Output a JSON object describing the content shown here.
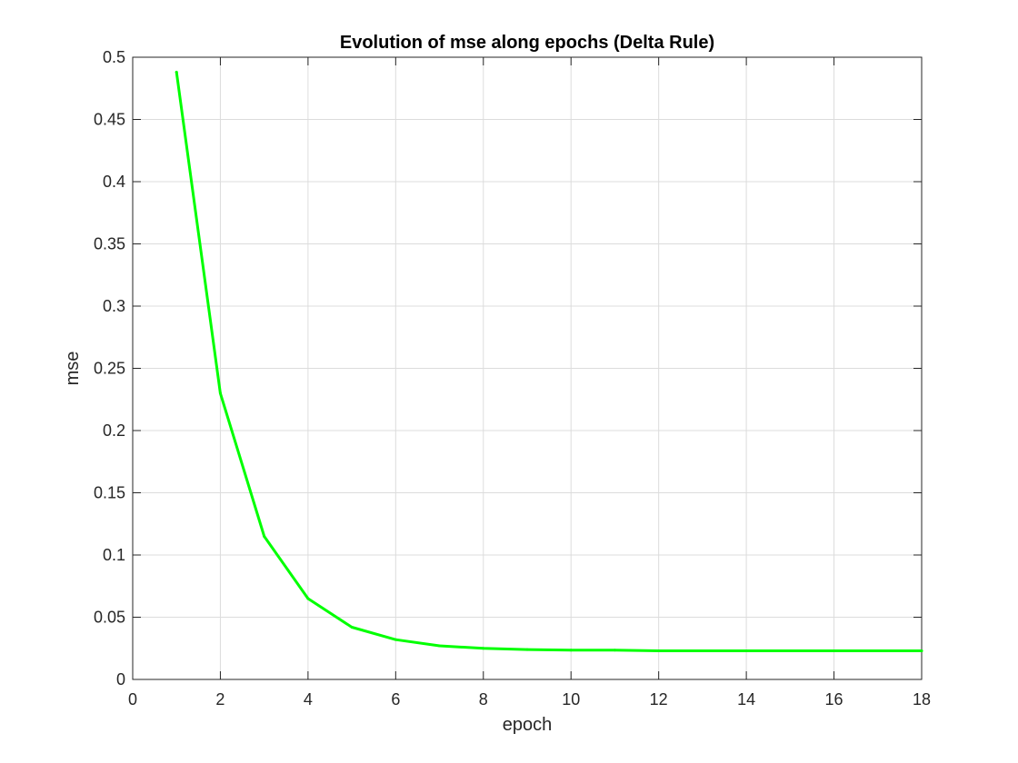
{
  "chart_data": {
    "type": "line",
    "title": "Evolution of mse along epochs (Delta Rule)",
    "xlabel": "epoch",
    "ylabel": "mse",
    "xlim": [
      0,
      18
    ],
    "ylim": [
      0,
      0.5
    ],
    "x_ticks": [
      "0",
      "2",
      "4",
      "6",
      "8",
      "10",
      "12",
      "14",
      "16",
      "18"
    ],
    "y_ticks": [
      "0",
      "0.05",
      "0.1",
      "0.15",
      "0.2",
      "0.25",
      "0.3",
      "0.35",
      "0.4",
      "0.45",
      "0.5"
    ],
    "grid": true,
    "series": [
      {
        "color": "#00ff00",
        "x": [
          1,
          2,
          3,
          4,
          5,
          6,
          7,
          8,
          9,
          10,
          11,
          12,
          13,
          14,
          15,
          16,
          17,
          18
        ],
        "values": [
          0.488,
          0.23,
          0.115,
          0.065,
          0.042,
          0.032,
          0.027,
          0.025,
          0.024,
          0.0235,
          0.0235,
          0.023,
          0.023,
          0.023,
          0.023,
          0.023,
          0.023,
          0.023
        ]
      }
    ]
  }
}
